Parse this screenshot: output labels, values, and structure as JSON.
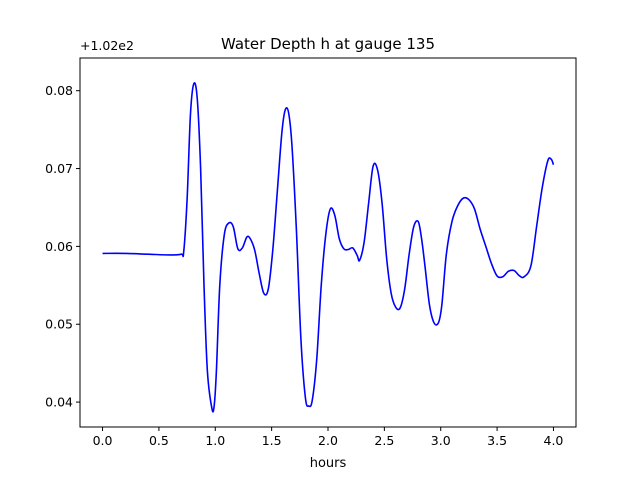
{
  "chart_data": {
    "type": "line",
    "title": "Water Depth h at gauge 135",
    "xlabel": "hours",
    "ylabel": "",
    "y_offset_label": "+1.02e2",
    "xlim": [
      -0.2,
      4.2
    ],
    "ylim": [
      0.0368,
      0.0842
    ],
    "x_ticks": [
      0.0,
      0.5,
      1.0,
      1.5,
      2.0,
      2.5,
      3.0,
      3.5,
      4.0
    ],
    "x_tick_labels": [
      "0.0",
      "0.5",
      "1.0",
      "1.5",
      "2.0",
      "2.5",
      "3.0",
      "3.5",
      "4.0"
    ],
    "y_ticks": [
      0.04,
      0.05,
      0.06,
      0.07,
      0.08
    ],
    "y_tick_labels": [
      "0.04",
      "0.05",
      "0.06",
      "0.07",
      "0.08"
    ],
    "grid": false,
    "series": [
      {
        "color": "#0000ff",
        "x": [
          0.0,
          0.2,
          0.4,
          0.6,
          0.7,
          0.72,
          0.75,
          0.78,
          0.81,
          0.84,
          0.87,
          0.9,
          0.93,
          0.97,
          0.99,
          1.01,
          1.04,
          1.08,
          1.12,
          1.16,
          1.2,
          1.24,
          1.28,
          1.31,
          1.35,
          1.39,
          1.43,
          1.47,
          1.51,
          1.55,
          1.59,
          1.62,
          1.65,
          1.68,
          1.72,
          1.76,
          1.8,
          1.83,
          1.86,
          1.9,
          1.94,
          1.98,
          2.02,
          2.06,
          2.1,
          2.14,
          2.18,
          2.22,
          2.26,
          2.28,
          2.32,
          2.36,
          2.4,
          2.44,
          2.48,
          2.52,
          2.56,
          2.6,
          2.64,
          2.68,
          2.72,
          2.76,
          2.8,
          2.83,
          2.86,
          2.9,
          2.94,
          2.98,
          3.01,
          3.05,
          3.1,
          3.15,
          3.2,
          3.25,
          3.3,
          3.35,
          3.4,
          3.45,
          3.5,
          3.55,
          3.6,
          3.65,
          3.7,
          3.74,
          3.8,
          3.85,
          3.9,
          3.95,
          3.98,
          4.0
        ],
        "y": [
          0.0591,
          0.0591,
          0.059,
          0.0589,
          0.059,
          0.0593,
          0.066,
          0.077,
          0.0809,
          0.079,
          0.07,
          0.055,
          0.044,
          0.0392,
          0.0395,
          0.044,
          0.055,
          0.0615,
          0.063,
          0.0625,
          0.0597,
          0.0598,
          0.0612,
          0.061,
          0.0595,
          0.0565,
          0.054,
          0.0545,
          0.0595,
          0.067,
          0.0745,
          0.0775,
          0.0772,
          0.073,
          0.062,
          0.048,
          0.0405,
          0.0395,
          0.0402,
          0.0455,
          0.055,
          0.0615,
          0.0648,
          0.064,
          0.061,
          0.0597,
          0.0596,
          0.0598,
          0.0588,
          0.0582,
          0.0605,
          0.0655,
          0.0703,
          0.0698,
          0.0655,
          0.0585,
          0.054,
          0.0522,
          0.0521,
          0.0545,
          0.059,
          0.0625,
          0.0632,
          0.061,
          0.0575,
          0.0525,
          0.0502,
          0.0502,
          0.0525,
          0.059,
          0.0632,
          0.0652,
          0.0662,
          0.066,
          0.0648,
          0.0622,
          0.06,
          0.0578,
          0.0562,
          0.0561,
          0.0568,
          0.0569,
          0.0562,
          0.0561,
          0.0575,
          0.0625,
          0.0675,
          0.071,
          0.0712,
          0.0705
        ]
      }
    ]
  }
}
